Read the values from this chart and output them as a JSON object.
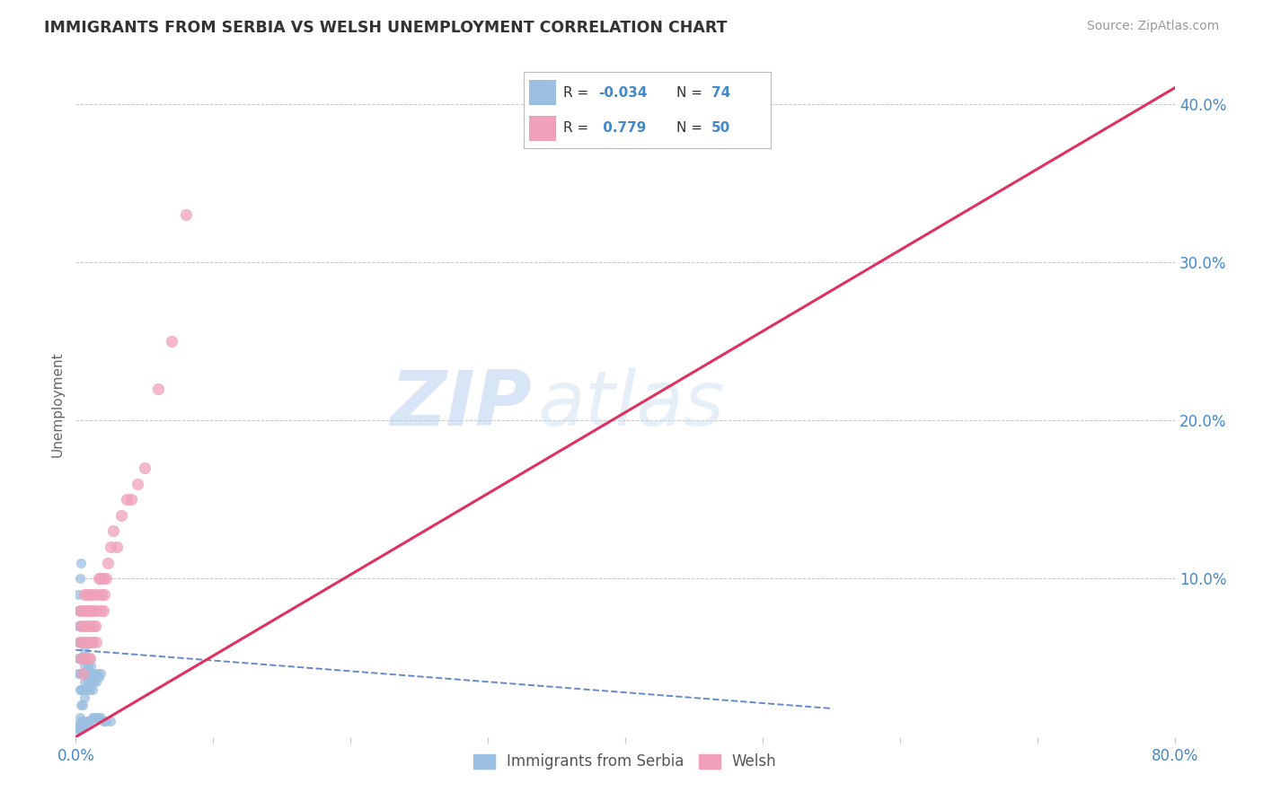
{
  "title": "IMMIGRANTS FROM SERBIA VS WELSH UNEMPLOYMENT CORRELATION CHART",
  "source": "Source: ZipAtlas.com",
  "ylabel": "Unemployment",
  "xlim": [
    0.0,
    0.8
  ],
  "ylim": [
    0.0,
    0.42
  ],
  "blue_scatter_x": [
    0.002,
    0.002,
    0.002,
    0.002,
    0.002,
    0.002,
    0.003,
    0.003,
    0.003,
    0.003,
    0.003,
    0.003,
    0.004,
    0.004,
    0.004,
    0.004,
    0.004,
    0.004,
    0.004,
    0.005,
    0.005,
    0.005,
    0.005,
    0.005,
    0.005,
    0.006,
    0.006,
    0.006,
    0.006,
    0.007,
    0.007,
    0.007,
    0.008,
    0.008,
    0.008,
    0.009,
    0.009,
    0.01,
    0.01,
    0.01,
    0.011,
    0.011,
    0.012,
    0.012,
    0.013,
    0.014,
    0.015,
    0.016,
    0.017,
    0.018,
    0.002,
    0.002,
    0.003,
    0.003,
    0.003,
    0.004,
    0.004,
    0.005,
    0.005,
    0.006,
    0.007,
    0.008,
    0.009,
    0.01,
    0.012,
    0.013,
    0.015,
    0.016,
    0.018,
    0.02,
    0.022,
    0.025,
    0.003,
    0.004
  ],
  "blue_scatter_y": [
    0.04,
    0.05,
    0.06,
    0.07,
    0.08,
    0.09,
    0.03,
    0.04,
    0.05,
    0.06,
    0.07,
    0.08,
    0.02,
    0.03,
    0.04,
    0.05,
    0.06,
    0.07,
    0.08,
    0.02,
    0.03,
    0.04,
    0.05,
    0.06,
    0.07,
    0.025,
    0.035,
    0.045,
    0.055,
    0.03,
    0.04,
    0.05,
    0.03,
    0.04,
    0.05,
    0.035,
    0.045,
    0.03,
    0.04,
    0.05,
    0.035,
    0.045,
    0.03,
    0.04,
    0.035,
    0.04,
    0.035,
    0.04,
    0.038,
    0.04,
    0.005,
    0.008,
    0.005,
    0.008,
    0.012,
    0.006,
    0.01,
    0.007,
    0.01,
    0.008,
    0.009,
    0.01,
    0.01,
    0.01,
    0.012,
    0.012,
    0.012,
    0.012,
    0.012,
    0.01,
    0.01,
    0.01,
    0.1,
    0.11
  ],
  "pink_scatter_x": [
    0.003,
    0.003,
    0.004,
    0.004,
    0.005,
    0.005,
    0.005,
    0.006,
    0.006,
    0.006,
    0.007,
    0.007,
    0.008,
    0.008,
    0.008,
    0.009,
    0.009,
    0.01,
    0.01,
    0.01,
    0.011,
    0.011,
    0.012,
    0.012,
    0.013,
    0.013,
    0.014,
    0.015,
    0.015,
    0.016,
    0.017,
    0.018,
    0.018,
    0.019,
    0.02,
    0.02,
    0.021,
    0.022,
    0.023,
    0.025,
    0.027,
    0.03,
    0.033,
    0.037,
    0.04,
    0.045,
    0.05,
    0.06,
    0.07,
    0.08
  ],
  "pink_scatter_y": [
    0.06,
    0.08,
    0.05,
    0.07,
    0.04,
    0.06,
    0.08,
    0.05,
    0.07,
    0.09,
    0.06,
    0.08,
    0.05,
    0.07,
    0.09,
    0.06,
    0.08,
    0.05,
    0.07,
    0.09,
    0.06,
    0.08,
    0.06,
    0.08,
    0.07,
    0.09,
    0.07,
    0.06,
    0.08,
    0.09,
    0.1,
    0.08,
    0.1,
    0.09,
    0.08,
    0.1,
    0.09,
    0.1,
    0.11,
    0.12,
    0.13,
    0.12,
    0.14,
    0.15,
    0.15,
    0.16,
    0.17,
    0.22,
    0.25,
    0.33
  ],
  "blue_line_x": [
    0.0,
    0.55
  ],
  "blue_line_y": [
    0.055,
    0.018
  ],
  "pink_line_x": [
    0.0,
    0.8
  ],
  "pink_line_y": [
    0.0,
    0.41
  ],
  "blue_color": "#9bbfe0",
  "pink_color": "#f0a0b8",
  "blue_line_color": "#6688cc",
  "pink_line_color": "#e03060",
  "watermark_zip": "ZIP",
  "watermark_atlas": "atlas",
  "grid_color": "#c8c8c8",
  "title_color": "#333333",
  "axis_tick_color": "#4488cc",
  "legend_blue_r": "R = -0.034",
  "legend_blue_n": "N = 74",
  "legend_pink_r": "R =  0.779",
  "legend_pink_n": "N = 50"
}
